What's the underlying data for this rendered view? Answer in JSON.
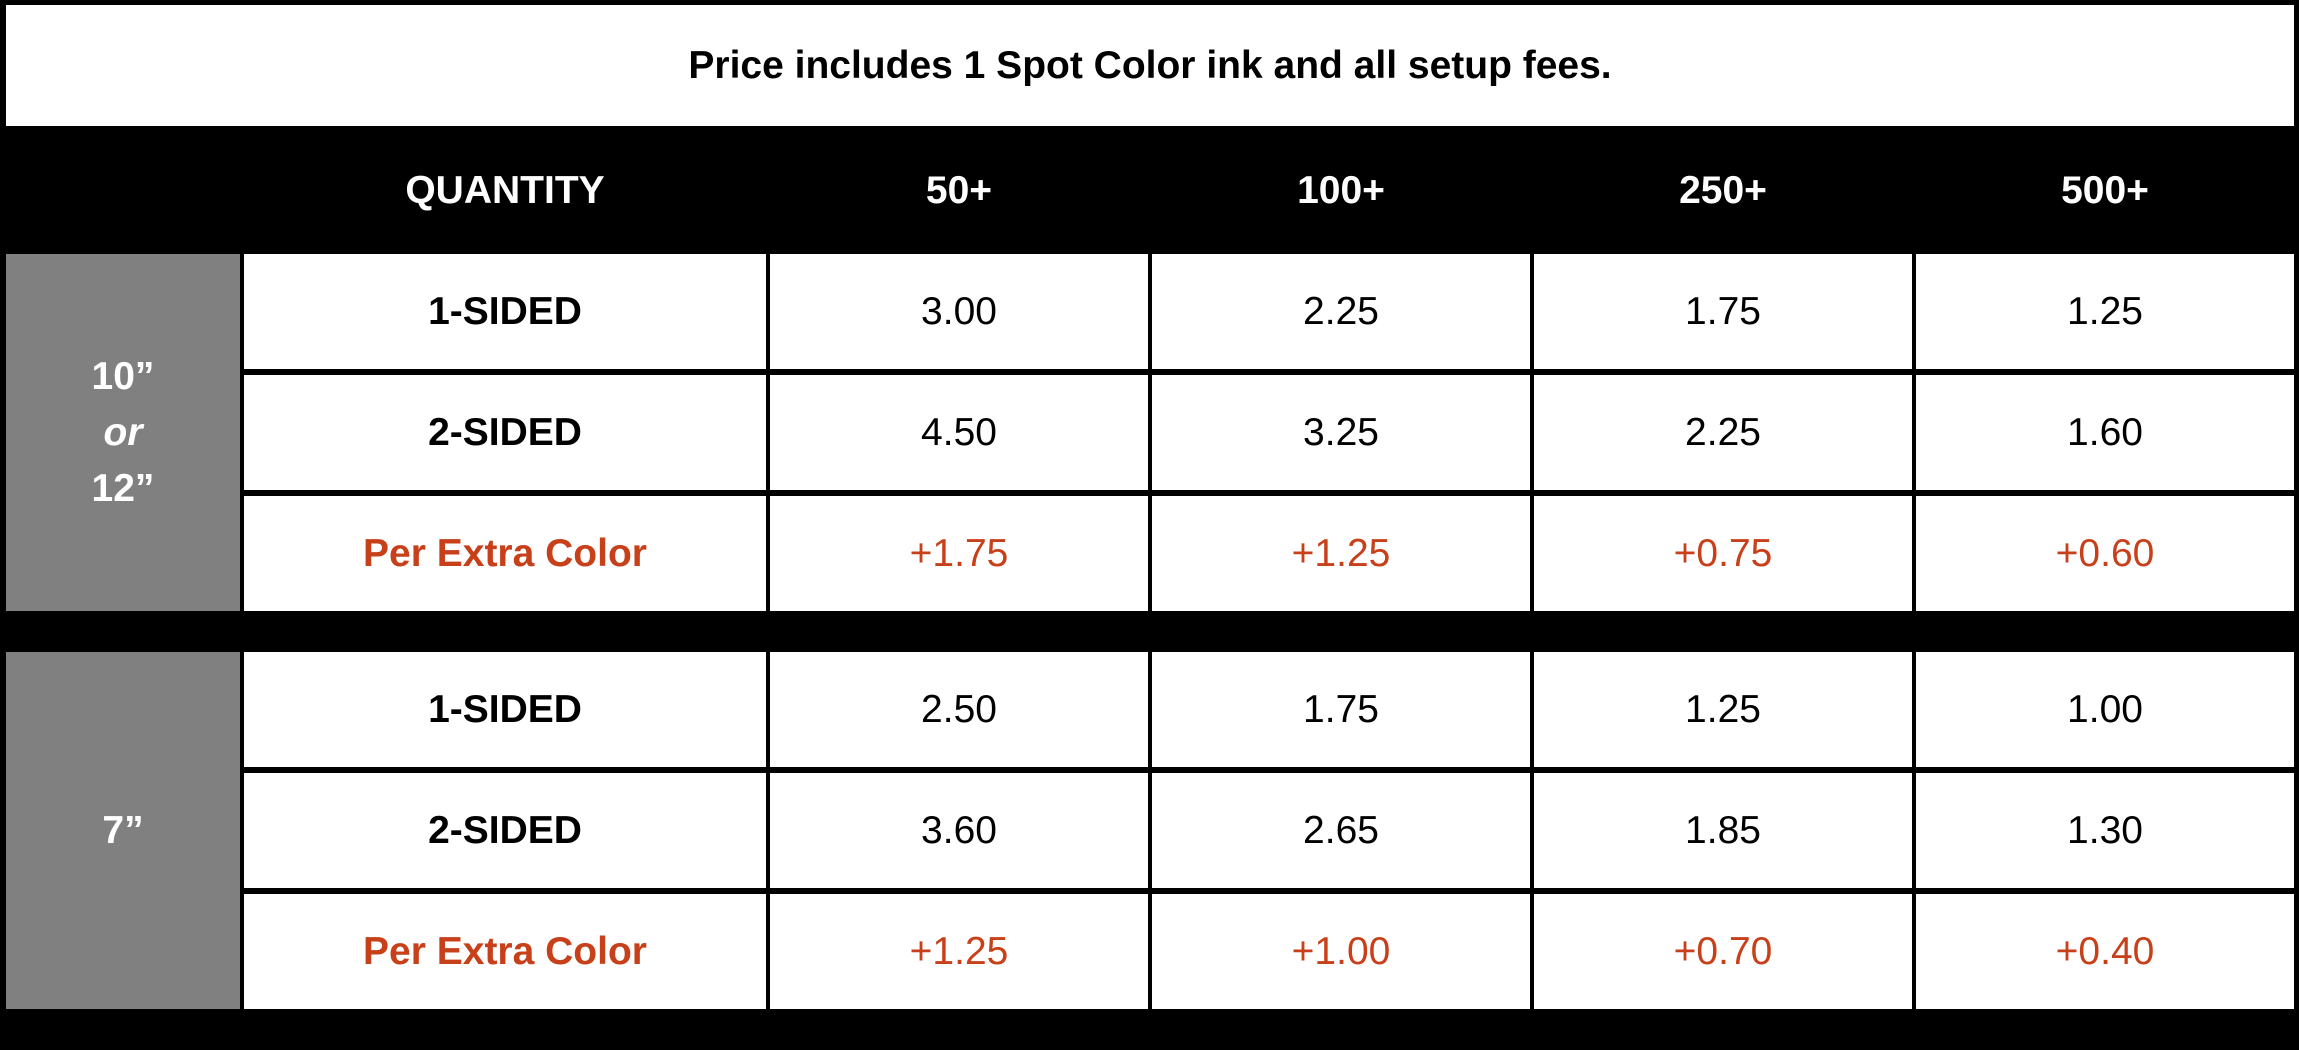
{
  "note": "Price includes 1 Spot Color ink and all setup fees.",
  "header": {
    "quantity_label": "QUANTITY",
    "tiers": [
      "50+",
      "100+",
      "250+",
      "500+"
    ]
  },
  "groups": [
    {
      "size_lines": [
        "10”",
        "or",
        "12”"
      ],
      "rows": [
        {
          "label": "1-SIDED",
          "values": [
            "3.00",
            "2.25",
            "1.75",
            "1.25"
          ],
          "kind": "price"
        },
        {
          "label": "2-SIDED",
          "values": [
            "4.50",
            "3.25",
            "2.25",
            "1.60"
          ],
          "kind": "price"
        },
        {
          "label": "Per Extra Color",
          "values": [
            "+1.75",
            "+1.25",
            "+0.75",
            "+0.60"
          ],
          "kind": "extra"
        }
      ]
    },
    {
      "size_lines": [
        "7”"
      ],
      "rows": [
        {
          "label": "1-SIDED",
          "values": [
            "2.50",
            "1.75",
            "1.25",
            "1.00"
          ],
          "kind": "price"
        },
        {
          "label": "2-SIDED",
          "values": [
            "3.60",
            "2.65",
            "1.85",
            "1.30"
          ],
          "kind": "price"
        },
        {
          "label": "Per Extra Color",
          "values": [
            "+1.25",
            "+1.00",
            "+0.70",
            "+0.40"
          ],
          "kind": "extra"
        }
      ]
    }
  ],
  "colors": {
    "header_bg": "#000000",
    "size_bg": "#808080",
    "extra_text": "#c8401a"
  }
}
